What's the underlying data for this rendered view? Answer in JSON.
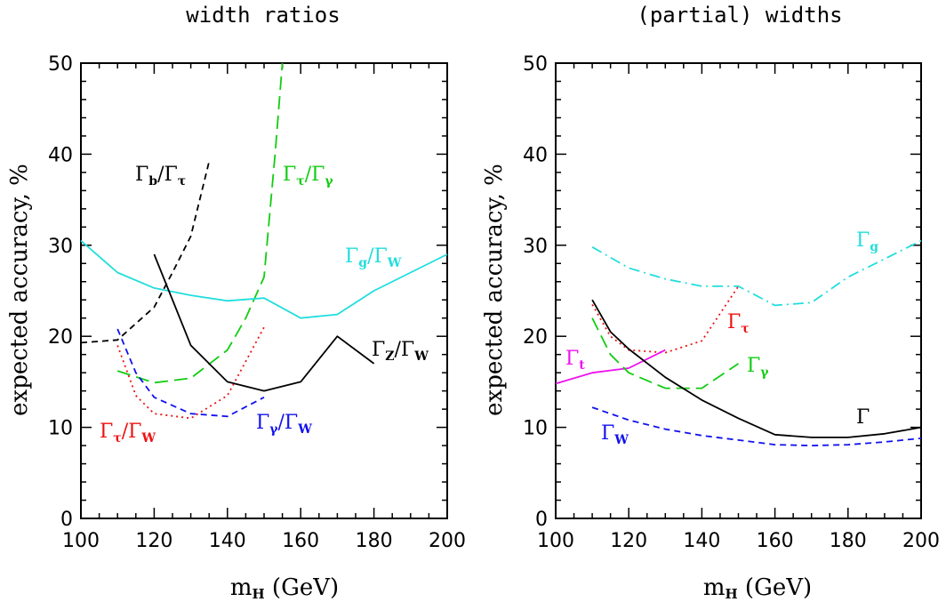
{
  "colors": {
    "black": "#000000",
    "cyan": "#22dddd",
    "green": "#11cc11",
    "red": "#ee1111",
    "blue": "#1111ee",
    "magenta": "#ee11ee"
  },
  "chart_data": [
    {
      "type": "line",
      "title": "width ratios",
      "xlabel_main": "m",
      "xlabel_sub": "H",
      "xlabel_rest": " (GeV)",
      "ylabel": "expected accuracy, %",
      "xlim": [
        100,
        200
      ],
      "ylim": [
        0,
        50
      ],
      "xticks": [
        100,
        120,
        140,
        160,
        180,
        200
      ],
      "yticks": [
        0,
        10,
        20,
        30,
        40,
        50
      ],
      "grid": false,
      "series": [
        {
          "name": "Γb/Γτ",
          "label_main": "Γ",
          "label_sub": "b",
          "label_mid": "/Γ",
          "label_sub2": "τ",
          "color": "#000000",
          "dash": "dashed",
          "x": [
            100,
            110,
            120,
            125,
            130,
            135
          ],
          "y": [
            19.3,
            19.6,
            23.2,
            27,
            31,
            39.2
          ]
        },
        {
          "name": "Γτ/Γγ",
          "label_main": "Γ",
          "label_sub": "τ",
          "label_mid": "/Γ",
          "label_sub2": "γ",
          "color": "#11cc11",
          "dash": "longdash",
          "x": [
            110,
            120,
            130,
            140,
            145,
            150,
            153,
            155
          ],
          "y": [
            16.2,
            14.9,
            15.4,
            18.5,
            22,
            26.5,
            40,
            50
          ]
        },
        {
          "name": "Γg/ΓW",
          "label_main": "Γ",
          "label_sub": "g",
          "label_mid": "/Γ",
          "label_sub2": "W",
          "color": "#22dddd",
          "dash": "solid",
          "x": [
            100,
            110,
            120,
            130,
            140,
            150,
            160,
            170,
            180,
            190,
            200
          ],
          "y": [
            30.5,
            27,
            25.3,
            24.5,
            23.9,
            24.2,
            22,
            22.4,
            25,
            27,
            29
          ]
        },
        {
          "name": "ΓZ/ΓW",
          "label_main": "Γ",
          "label_sub": "Z",
          "label_mid": "/Γ",
          "label_sub2": "W",
          "color": "#000000",
          "dash": "solid",
          "x": [
            120,
            130,
            140,
            150,
            160,
            170,
            180
          ],
          "y": [
            29,
            19,
            15,
            14,
            15,
            20,
            17
          ]
        },
        {
          "name": "Γτ/ΓW",
          "label_main": "Γ",
          "label_sub": "τ",
          "label_mid": "/Γ",
          "label_sub2": "W",
          "color": "#ee1111",
          "dash": "dotted",
          "x": [
            110,
            115,
            120,
            130,
            140,
            150
          ],
          "y": [
            19,
            13.5,
            11.5,
            11,
            13.5,
            21
          ]
        },
        {
          "name": "Γγ/ΓW",
          "label_main": "Γ",
          "label_sub": "γ",
          "label_mid": "/Γ",
          "label_sub2": "W",
          "color": "#1111ee",
          "dash": "dashed",
          "x": [
            110,
            115,
            120,
            130,
            140,
            150
          ],
          "y": [
            20.8,
            16,
            13.3,
            11.5,
            11.2,
            13.3
          ]
        }
      ]
    },
    {
      "type": "line",
      "title": "(partial) widths",
      "xlabel_main": "m",
      "xlabel_sub": "H",
      "xlabel_rest": " (GeV)",
      "ylabel": "expected accuracy, %",
      "xlim": [
        100,
        200
      ],
      "ylim": [
        0,
        50
      ],
      "xticks": [
        100,
        120,
        140,
        160,
        180,
        200
      ],
      "yticks": [
        0,
        10,
        20,
        30,
        40,
        50
      ],
      "grid": false,
      "series": [
        {
          "name": "Γg",
          "label_main": "Γ",
          "label_sub": "g",
          "color": "#22dddd",
          "dash": "dashdot",
          "x": [
            110,
            120,
            130,
            140,
            150,
            160,
            170,
            180,
            190,
            200
          ],
          "y": [
            29.8,
            27.5,
            26.3,
            25.5,
            25.5,
            23.4,
            23.7,
            26.5,
            28.5,
            30.5
          ]
        },
        {
          "name": "Γτ",
          "label_main": "Γ",
          "label_sub": "τ",
          "color": "#ee1111",
          "dash": "dotted",
          "x": [
            110,
            115,
            120,
            130,
            140,
            150
          ],
          "y": [
            23.5,
            20,
            18.5,
            18.2,
            19.5,
            25.5
          ]
        },
        {
          "name": "Γt",
          "label_main": "Γ",
          "label_sub": "t",
          "color": "#ee11ee",
          "dash": "solid",
          "x": [
            100,
            110,
            120,
            130
          ],
          "y": [
            14.8,
            16,
            16.5,
            18.5
          ]
        },
        {
          "name": "Γγ",
          "label_main": "Γ",
          "label_sub": "γ",
          "color": "#11cc11",
          "dash": "longdash",
          "x": [
            110,
            115,
            120,
            130,
            140,
            150
          ],
          "y": [
            22,
            18,
            16,
            14.3,
            14.3,
            17
          ]
        },
        {
          "name": "Γ",
          "label_main": "Γ",
          "label_sub": "",
          "color": "#000000",
          "dash": "solid",
          "x": [
            110,
            115,
            120,
            130,
            140,
            150,
            160,
            170,
            180,
            190,
            200
          ],
          "y": [
            24,
            20.5,
            18.6,
            15.5,
            13,
            11,
            9.2,
            8.9,
            8.9,
            9.3,
            10
          ]
        },
        {
          "name": "ΓW",
          "label_main": "Γ",
          "label_sub": "W",
          "color": "#1111ee",
          "dash": "dashed",
          "x": [
            110,
            120,
            130,
            140,
            150,
            160,
            170,
            180,
            190,
            200
          ],
          "y": [
            12.2,
            10.8,
            9.8,
            9.1,
            8.6,
            8.1,
            8,
            8.1,
            8.4,
            8.8
          ]
        }
      ]
    }
  ]
}
